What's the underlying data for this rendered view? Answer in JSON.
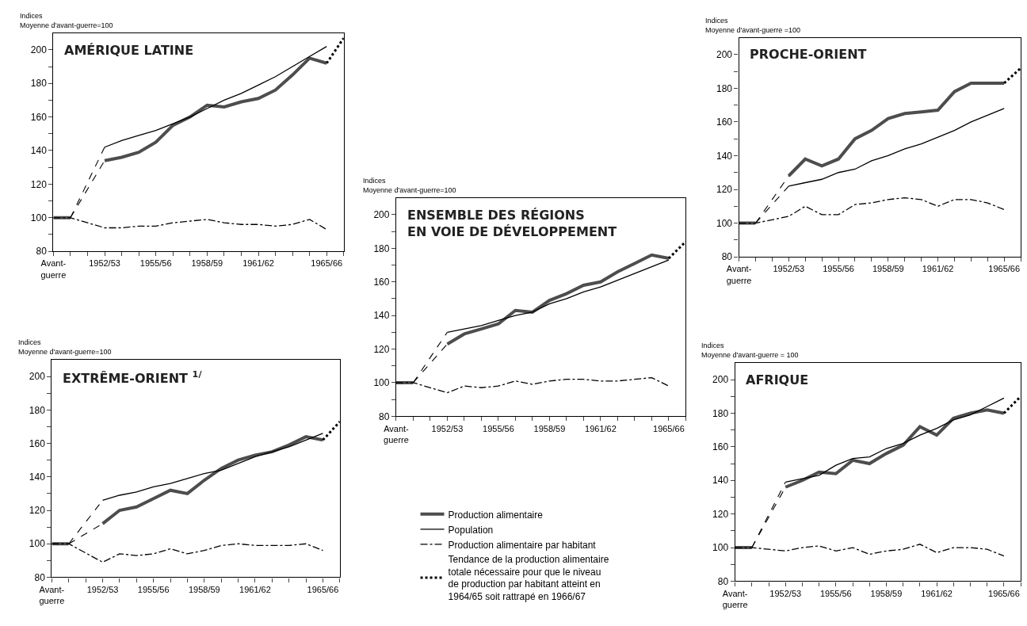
{
  "chart_data": [
    {
      "type": "line",
      "title": "AMÉRIQUE LATINE",
      "ylabel": "Indices\nMoyenne d'avant-guerre=100",
      "marker": "none",
      "ylim": [
        80,
        210
      ],
      "categories": [
        "Avant-\nguerre",
        null,
        null,
        "1952/53",
        null,
        null,
        "1955/56",
        null,
        null,
        "1958/59",
        null,
        null,
        "1961/62",
        null,
        null,
        null,
        "1965/66",
        null
      ],
      "yticks": [
        80,
        {
          "value": 90,
          "label": null
        },
        100,
        {
          "value": 110,
          "label": null
        },
        120,
        {
          "value": 130,
          "label": null
        },
        140,
        {
          "value": 150,
          "label": null
        },
        160,
        {
          "value": 170,
          "label": null
        },
        180,
        {
          "value": 190,
          "label": null
        },
        200
      ],
      "series": [
        {
          "color": "#4d4d4d",
          "line_style": "solid",
          "values": [
            100,
            100,
            null,
            null,
            null,
            null,
            null,
            null,
            null,
            null,
            null,
            null,
            null,
            null,
            null,
            null,
            null,
            null
          ]
        },
        {
          "color": "#4d4d4d",
          "line_style": "solid",
          "values": [
            null,
            null,
            null,
            134,
            136,
            139,
            145,
            155,
            160,
            167,
            166,
            169,
            171,
            176,
            185,
            195,
            192,
            null
          ]
        },
        {
          "color": "#000000",
          "line_style": "dashed",
          "values": [
            null,
            100,
            null,
            134,
            null,
            null,
            null,
            null,
            null,
            null,
            null,
            null,
            null,
            null,
            null,
            null,
            null,
            null
          ]
        },
        {
          "color": "#000000",
          "line_style": "solid",
          "values": [
            null,
            null,
            null,
            142,
            146,
            149,
            152,
            156,
            160,
            165,
            170,
            174,
            179,
            184,
            190,
            196,
            202,
            null
          ]
        },
        {
          "color": "#000000",
          "line_style": "dashed",
          "values": [
            null,
            100,
            null,
            142,
            null,
            null,
            null,
            null,
            null,
            null,
            null,
            null,
            null,
            null,
            null,
            null,
            null,
            null
          ]
        },
        {
          "color": "#000000",
          "line_style": "dashdot",
          "values": [
            100,
            100,
            null,
            94,
            94,
            95,
            95,
            97,
            98,
            99,
            97,
            96,
            96,
            95,
            96,
            99,
            93,
            null
          ]
        },
        {
          "color": "#000000",
          "line_style": "dotted",
          "values": [
            null,
            null,
            null,
            null,
            null,
            null,
            null,
            null,
            null,
            null,
            null,
            null,
            null,
            null,
            null,
            null,
            192,
            207
          ]
        }
      ]
    },
    {
      "type": "line",
      "title": "PROCHE-ORIENT",
      "ylabel": "Indices\nMoyenne d'avant-guerre =100",
      "marker": "none",
      "ylim": [
        80,
        210
      ],
      "categories": [
        "Avant-\nguerre",
        null,
        null,
        "1952/53",
        null,
        null,
        "1955/56",
        null,
        null,
        "1958/59",
        null,
        null,
        "1961/62",
        null,
        null,
        null,
        "1965/66",
        null
      ],
      "yticks": [
        80,
        {
          "value": 90,
          "label": null
        },
        100,
        {
          "value": 110,
          "label": null
        },
        120,
        {
          "value": 130,
          "label": null
        },
        140,
        {
          "value": 150,
          "label": null
        },
        160,
        {
          "value": 170,
          "label": null
        },
        180,
        {
          "value": 190,
          "label": null
        },
        200
      ],
      "series": [
        {
          "color": "#4d4d4d",
          "line_style": "solid",
          "values": [
            100,
            100,
            null,
            null,
            null,
            null,
            null,
            null,
            null,
            null,
            null,
            null,
            null,
            null,
            null,
            null,
            null,
            null
          ]
        },
        {
          "color": "#4d4d4d",
          "line_style": "solid",
          "values": [
            null,
            null,
            null,
            128,
            138,
            134,
            138,
            150,
            155,
            162,
            165,
            166,
            167,
            178,
            183,
            183,
            183,
            null
          ]
        },
        {
          "color": "#000000",
          "line_style": "dashed",
          "values": [
            null,
            100,
            null,
            128,
            null,
            null,
            null,
            null,
            null,
            null,
            null,
            null,
            null,
            null,
            null,
            null,
            null,
            null
          ]
        },
        {
          "color": "#000000",
          "line_style": "solid",
          "values": [
            null,
            null,
            null,
            122,
            124,
            126,
            130,
            132,
            137,
            140,
            144,
            147,
            151,
            155,
            160,
            164,
            168,
            null
          ]
        },
        {
          "color": "#000000",
          "line_style": "dashed",
          "values": [
            null,
            100,
            null,
            122,
            null,
            null,
            null,
            null,
            null,
            null,
            null,
            null,
            null,
            null,
            null,
            null,
            null,
            null
          ]
        },
        {
          "color": "#000000",
          "line_style": "dashdot",
          "values": [
            100,
            100,
            null,
            104,
            110,
            105,
            105,
            111,
            112,
            114,
            115,
            114,
            110,
            114,
            114,
            112,
            108,
            null
          ]
        },
        {
          "color": "#000000",
          "line_style": "dotted",
          "values": [
            null,
            null,
            null,
            null,
            null,
            null,
            null,
            null,
            null,
            null,
            null,
            null,
            null,
            null,
            null,
            null,
            183,
            192
          ]
        }
      ]
    },
    {
      "type": "line",
      "title": "ENSEMBLE DES RÉGIONS\nEN VOIE DE DÉVELOPPEMENT",
      "ylabel": "Indices\nMoyenne d'avant-guerre=100",
      "marker": "none",
      "legend": "bottom",
      "ylim": [
        80,
        210
      ],
      "categories": [
        "Avant-\nguerre",
        null,
        null,
        "1952/53",
        null,
        null,
        "1955/56",
        null,
        null,
        "1958/59",
        null,
        null,
        "1961/62",
        null,
        null,
        null,
        "1965/66",
        null
      ],
      "yticks": [
        80,
        {
          "value": 90,
          "label": null
        },
        100,
        {
          "value": 110,
          "label": null
        },
        120,
        {
          "value": 130,
          "label": null
        },
        140,
        {
          "value": 150,
          "label": null
        },
        160,
        {
          "value": 170,
          "label": null
        },
        180,
        {
          "value": 190,
          "label": null
        },
        200
      ],
      "series": [
        {
          "color": "#4d4d4d",
          "line_style": "solid",
          "values": [
            100,
            100,
            null,
            null,
            null,
            null,
            null,
            null,
            null,
            null,
            null,
            null,
            null,
            null,
            null,
            null,
            null,
            null
          ]
        },
        {
          "name": "Production alimentaire",
          "color": "#4d4d4d",
          "line_style": "solid",
          "values": [
            null,
            null,
            null,
            123,
            129,
            132,
            135,
            143,
            142,
            149,
            153,
            158,
            160,
            166,
            171,
            176,
            174,
            null
          ]
        },
        {
          "color": "#000000",
          "line_style": "dashed",
          "values": [
            null,
            100,
            null,
            123,
            null,
            null,
            null,
            null,
            null,
            null,
            null,
            null,
            null,
            null,
            null,
            null,
            null,
            null
          ]
        },
        {
          "name": "Population",
          "color": "#000000",
          "line_style": "solid",
          "values": [
            null,
            null,
            null,
            130,
            132,
            134,
            137,
            140,
            142,
            147,
            150,
            154,
            157,
            161,
            165,
            169,
            173,
            null
          ]
        },
        {
          "color": "#000000",
          "line_style": "dashed",
          "values": [
            null,
            100,
            null,
            130,
            null,
            null,
            null,
            null,
            null,
            null,
            null,
            null,
            null,
            null,
            null,
            null,
            null,
            null
          ]
        },
        {
          "name": "Production alimentaire par habitant",
          "color": "#000000",
          "line_style": "dashdot",
          "values": [
            100,
            100,
            null,
            94,
            98,
            97,
            98,
            101,
            99,
            101,
            102,
            102,
            101,
            101,
            102,
            103,
            98,
            null
          ]
        },
        {
          "name": "Tendance de la production alimentaire totale nécessaire pour que le niveau de production par habitant atteint en 1964/65 soit rattrapé en 1966/67",
          "color": "#000000",
          "line_style": "dotted",
          "values": [
            null,
            null,
            null,
            null,
            null,
            null,
            null,
            null,
            null,
            null,
            null,
            null,
            null,
            null,
            null,
            null,
            174,
            184
          ]
        }
      ]
    },
    {
      "type": "line",
      "title": "EXTRÊME-ORIENT $^{1/}$",
      "ylabel": "Indices\nMoyenne d'avant-guerre=100",
      "marker": "none",
      "ylim": [
        80,
        210
      ],
      "categories": [
        "Avant-\nguerre",
        null,
        null,
        "1952/53",
        null,
        null,
        "1955/56",
        null,
        null,
        "1958/59",
        null,
        null,
        "1961/62",
        null,
        null,
        null,
        "1965/66",
        null
      ],
      "yticks": [
        80,
        {
          "value": 90,
          "label": null
        },
        100,
        {
          "value": 110,
          "label": null
        },
        120,
        {
          "value": 130,
          "label": null
        },
        140,
        {
          "value": 150,
          "label": null
        },
        160,
        {
          "value": 170,
          "label": null
        },
        180,
        {
          "value": 190,
          "label": null
        },
        200
      ],
      "series": [
        {
          "color": "#4d4d4d",
          "line_style": "solid",
          "values": [
            100,
            100,
            null,
            null,
            null,
            null,
            null,
            null,
            null,
            null,
            null,
            null,
            null,
            null,
            null,
            null,
            null,
            null
          ]
        },
        {
          "color": "#4d4d4d",
          "line_style": "solid",
          "values": [
            null,
            null,
            null,
            112,
            120,
            122,
            127,
            132,
            130,
            138,
            145,
            150,
            153,
            155,
            159,
            164,
            162,
            null
          ]
        },
        {
          "color": "#000000",
          "line_style": "dashed",
          "values": [
            null,
            100,
            null,
            112,
            null,
            null,
            null,
            null,
            null,
            null,
            null,
            null,
            null,
            null,
            null,
            null,
            null,
            null
          ]
        },
        {
          "color": "#000000",
          "line_style": "solid",
          "values": [
            null,
            null,
            null,
            126,
            129,
            131,
            134,
            136,
            139,
            142,
            144,
            148,
            152,
            155,
            158,
            162,
            166,
            null
          ]
        },
        {
          "color": "#000000",
          "line_style": "dashed",
          "values": [
            null,
            100,
            null,
            126,
            null,
            null,
            null,
            null,
            null,
            null,
            null,
            null,
            null,
            null,
            null,
            null,
            null,
            null
          ]
        },
        {
          "color": "#000000",
          "line_style": "dashdot",
          "values": [
            100,
            100,
            null,
            89,
            94,
            93,
            94,
            97,
            94,
            96,
            99,
            100,
            99,
            99,
            99,
            100,
            96,
            null
          ]
        },
        {
          "color": "#000000",
          "line_style": "dotted",
          "values": [
            null,
            null,
            null,
            null,
            null,
            null,
            null,
            null,
            null,
            null,
            null,
            null,
            null,
            null,
            null,
            null,
            162,
            173
          ]
        }
      ]
    },
    {
      "type": "line",
      "title": "AFRIQUE",
      "ylabel": "Indices\nMoyenne d'avant-guerre = 100",
      "marker": "none",
      "ylim": [
        80,
        210
      ],
      "categories": [
        "Avant-\nguerre",
        null,
        null,
        "1952/53",
        null,
        null,
        "1955/56",
        null,
        null,
        "1958/59",
        null,
        null,
        "1961/62",
        null,
        null,
        null,
        "1965/66",
        null
      ],
      "yticks": [
        80,
        {
          "value": 90,
          "label": null
        },
        100,
        {
          "value": 110,
          "label": null
        },
        120,
        {
          "value": 130,
          "label": null
        },
        140,
        {
          "value": 150,
          "label": null
        },
        160,
        {
          "value": 170,
          "label": null
        },
        180,
        {
          "value": 190,
          "label": null
        },
        200
      ],
      "series": [
        {
          "color": "#4d4d4d",
          "line_style": "solid",
          "values": [
            100,
            100,
            null,
            null,
            null,
            null,
            null,
            null,
            null,
            null,
            null,
            null,
            null,
            null,
            null,
            null,
            null,
            null
          ]
        },
        {
          "color": "#4d4d4d",
          "line_style": "solid",
          "values": [
            null,
            null,
            null,
            136,
            140,
            145,
            144,
            152,
            150,
            156,
            161,
            172,
            167,
            177,
            180,
            182,
            180,
            null
          ]
        },
        {
          "color": "#000000",
          "line_style": "dashed",
          "values": [
            null,
            100,
            null,
            136,
            null,
            null,
            null,
            null,
            null,
            null,
            null,
            null,
            null,
            null,
            null,
            null,
            null,
            null
          ]
        },
        {
          "color": "#000000",
          "line_style": "solid",
          "values": [
            null,
            null,
            null,
            139,
            141,
            143,
            149,
            153,
            154,
            159,
            162,
            167,
            171,
            176,
            179,
            184,
            189,
            null
          ]
        },
        {
          "color": "#000000",
          "line_style": "dashed",
          "values": [
            null,
            100,
            null,
            139,
            null,
            null,
            null,
            null,
            null,
            null,
            null,
            null,
            null,
            null,
            null,
            null,
            null,
            null
          ]
        },
        {
          "color": "#000000",
          "line_style": "dashdot",
          "values": [
            100,
            100,
            null,
            98,
            100,
            101,
            98,
            100,
            96,
            98,
            99,
            102,
            97,
            100,
            100,
            99,
            95,
            null
          ]
        },
        {
          "color": "#000000",
          "line_style": "dotted",
          "values": [
            null,
            null,
            null,
            null,
            null,
            null,
            null,
            null,
            null,
            null,
            null,
            null,
            null,
            null,
            null,
            null,
            180,
            190
          ]
        }
      ]
    }
  ]
}
